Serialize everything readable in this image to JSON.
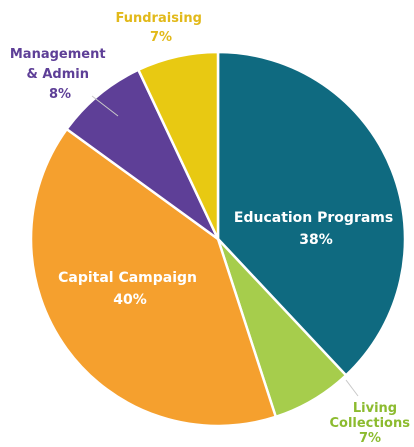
{
  "chart_data": {
    "type": "pie",
    "start_angle_deg": 0,
    "direction": "clockwise",
    "slices": [
      {
        "label": "Education Programs",
        "value": 38,
        "value_label": "38%",
        "color": "#0f6a80",
        "label_color": "#ffffff"
      },
      {
        "label": "Living Collections",
        "value": 7,
        "value_label": "7%",
        "color": "#a6cd4c",
        "label_color": "#8cbb2f"
      },
      {
        "label": "Capital Campaign",
        "value": 40,
        "value_label": "40%",
        "color": "#f5a02e",
        "label_color": "#ffffff"
      },
      {
        "label": "Management & Admin",
        "value": 8,
        "value_label": "8%",
        "color": "#5e3f97",
        "label_color": "#5e3f97"
      },
      {
        "label": "Fundraising",
        "value": 7,
        "value_label": "7%",
        "color": "#e8c912",
        "label_color": "#e2b91a"
      }
    ]
  }
}
